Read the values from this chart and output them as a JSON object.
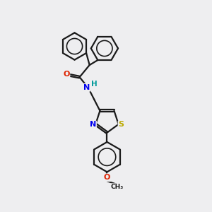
{
  "background_color": "#eeeef0",
  "bond_color": "#1a1a1a",
  "atom_colors": {
    "O": "#dd2200",
    "N": "#0000ee",
    "S": "#bbaa00",
    "H": "#009999",
    "C": "#1a1a1a"
  },
  "bond_lw": 1.6,
  "figsize": [
    3.0,
    3.0
  ],
  "dpi": 100,
  "font_size": 7.5
}
